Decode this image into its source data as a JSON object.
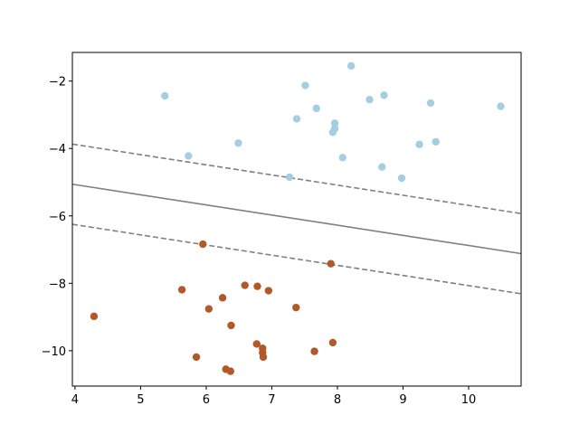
{
  "chart_data": {
    "type": "scatter",
    "title": "",
    "xlabel": "",
    "ylabel": "",
    "xlim": [
      3.96,
      10.8
    ],
    "ylim": [
      -11.05,
      -1.15
    ],
    "grid": false,
    "xticks": [
      4,
      5,
      6,
      7,
      8,
      9,
      10
    ],
    "yticks": [
      -2,
      -4,
      -6,
      -8,
      -10
    ],
    "xtick_labels": [
      "4",
      "5",
      "6",
      "7",
      "8",
      "9",
      "10"
    ],
    "ytick_labels": [
      "−2",
      "−4",
      "−6",
      "−8",
      "−10"
    ],
    "colors": {
      "class_0": "#a6cee3",
      "class_1": "#b15928",
      "line": "#808080"
    },
    "series": [
      {
        "color_key": "class_0",
        "points": [
          [
            5.37,
            -2.44
          ],
          [
            5.73,
            -4.22
          ],
          [
            6.49,
            -3.84
          ],
          [
            7.27,
            -4.85
          ],
          [
            7.38,
            -3.12
          ],
          [
            7.51,
            -2.13
          ],
          [
            7.68,
            -2.81
          ],
          [
            7.93,
            -3.52
          ],
          [
            7.96,
            -3.41
          ],
          [
            7.96,
            -3.25
          ],
          [
            8.08,
            -4.27
          ],
          [
            8.21,
            -1.55
          ],
          [
            8.49,
            -2.55
          ],
          [
            8.68,
            -4.55
          ],
          [
            8.71,
            -2.42
          ],
          [
            8.98,
            -4.88
          ],
          [
            9.25,
            -3.88
          ],
          [
            9.42,
            -2.65
          ],
          [
            9.5,
            -3.8
          ],
          [
            10.49,
            -2.75
          ]
        ]
      },
      {
        "color_key": "class_1",
        "points": [
          [
            4.29,
            -8.98
          ],
          [
            5.63,
            -8.19
          ],
          [
            5.85,
            -10.19
          ],
          [
            5.95,
            -6.84
          ],
          [
            6.04,
            -8.76
          ],
          [
            6.25,
            -8.43
          ],
          [
            6.3,
            -10.55
          ],
          [
            6.37,
            -10.61
          ],
          [
            6.38,
            -9.25
          ],
          [
            6.59,
            -8.06
          ],
          [
            6.77,
            -9.8
          ],
          [
            6.78,
            -8.09
          ],
          [
            6.86,
            -9.93
          ],
          [
            6.86,
            -10.06
          ],
          [
            6.87,
            -10.19
          ],
          [
            6.95,
            -8.22
          ],
          [
            7.37,
            -8.72
          ],
          [
            7.65,
            -10.02
          ],
          [
            7.9,
            -7.42
          ],
          [
            7.93,
            -9.76
          ]
        ]
      }
    ],
    "lines": [
      {
        "name": "decision-boundary",
        "style": "solid",
        "x": [
          3.96,
          10.8
        ],
        "y": [
          -5.06,
          -7.12
        ]
      },
      {
        "name": "margin-upper",
        "style": "dashed",
        "x": [
          3.96,
          10.8
        ],
        "y": [
          -3.87,
          -5.93
        ]
      },
      {
        "name": "margin-lower",
        "style": "dashed",
        "x": [
          3.96,
          10.8
        ],
        "y": [
          -6.25,
          -8.31
        ]
      }
    ]
  }
}
